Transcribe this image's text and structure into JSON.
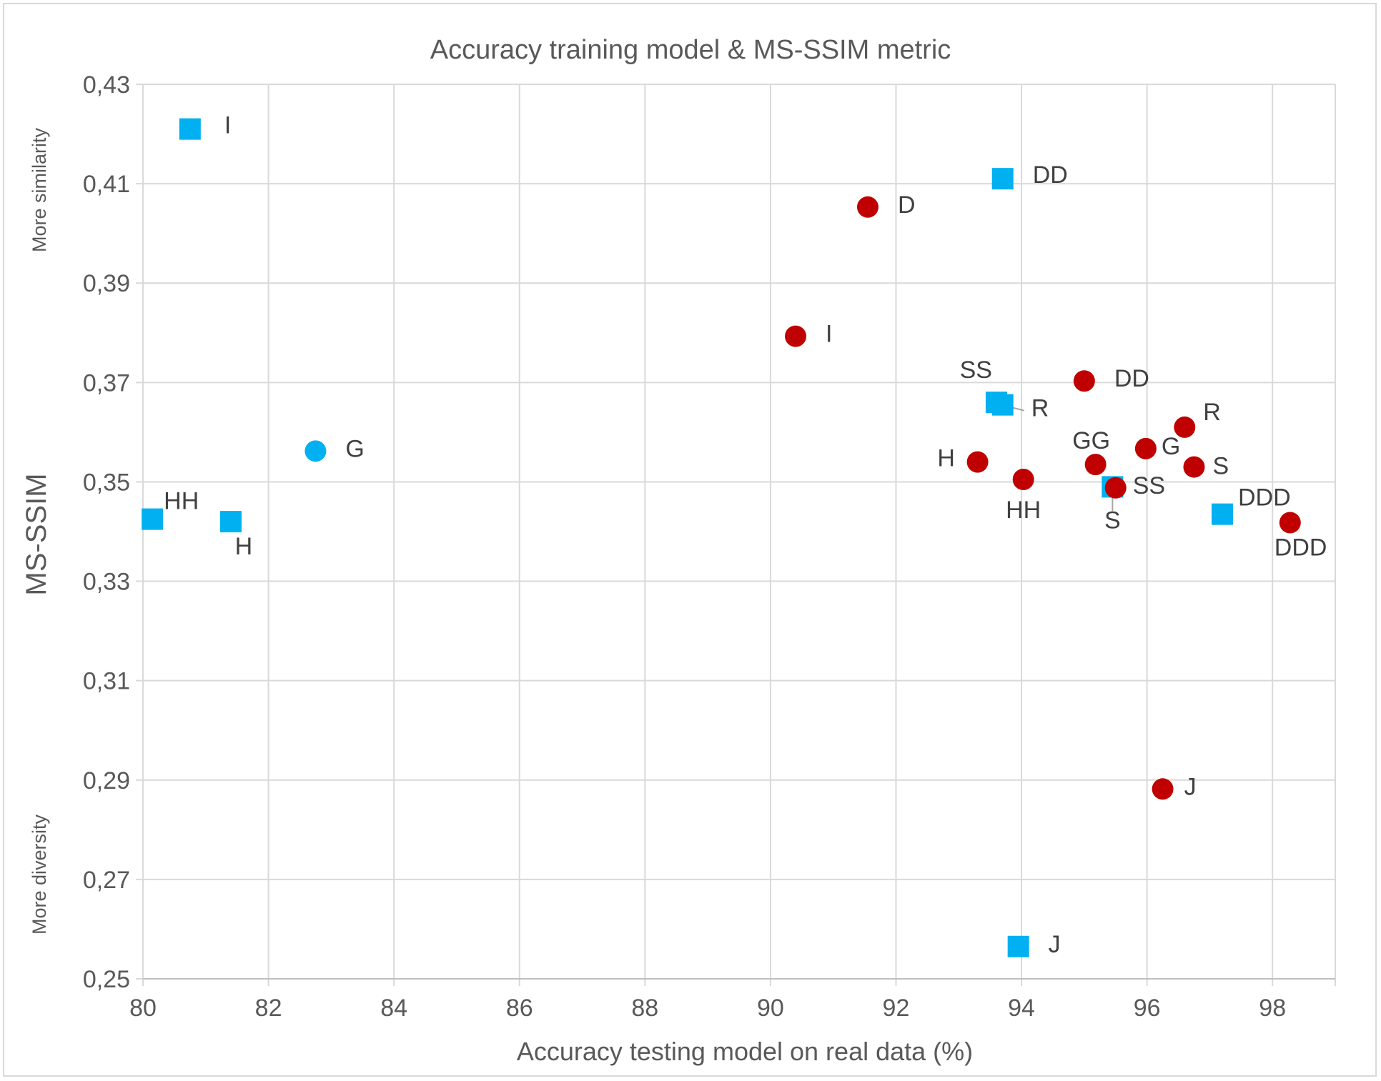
{
  "chart_data": {
    "type": "scatter",
    "title": "Accuracy training model & MS-SSIM metric",
    "xlabel": "Accuracy testing model on real data (%)",
    "ylabel": "MS-SSIM",
    "xlim": [
      80,
      99
    ],
    "ylim": [
      0.25,
      0.43
    ],
    "x_ticks": [
      80,
      82,
      84,
      86,
      88,
      90,
      92,
      94,
      96,
      98
    ],
    "x_tick_labels": [
      "80",
      "82",
      "84",
      "86",
      "88",
      "90",
      "92",
      "94",
      "96",
      "98"
    ],
    "y_ticks": [
      0.25,
      0.27,
      0.29,
      0.31,
      0.33,
      0.35,
      0.37,
      0.39,
      0.41,
      0.43
    ],
    "y_tick_labels": [
      "0,25",
      "0,27",
      "0,29",
      "0,31",
      "0,33",
      "0,35",
      "0,37",
      "0,39",
      "0,41",
      "0,43"
    ],
    "grid": true,
    "annotations": {
      "top": "More similarity",
      "bottom": "More diversity"
    },
    "series": [
      {
        "marker": "square",
        "color": "#00b0f0",
        "points": [
          {
            "x": 80.75,
            "y": 0.421,
            "label": "I"
          },
          {
            "x": 93.7,
            "y": 0.411,
            "label": "DD"
          },
          {
            "x": 93.6,
            "y": 0.366,
            "label": "SS"
          },
          {
            "x": 93.7,
            "y": 0.3655,
            "label": "R"
          },
          {
            "x": 95.45,
            "y": 0.349,
            "label": "S"
          },
          {
            "x": 97.2,
            "y": 0.3435,
            "label": "DDD"
          },
          {
            "x": 80.15,
            "y": 0.3425,
            "label": "HH"
          },
          {
            "x": 81.4,
            "y": 0.342,
            "label": "H"
          },
          {
            "x": 93.95,
            "y": 0.2565,
            "label": "J"
          }
        ]
      },
      {
        "marker": "circle",
        "color": "#00b0f0",
        "points": [
          {
            "x": 82.75,
            "y": 0.3562,
            "label": "G"
          }
        ]
      },
      {
        "marker": "circle",
        "color": "#c00000",
        "points": [
          {
            "x": 91.55,
            "y": 0.4053,
            "label": "D"
          },
          {
            "x": 90.4,
            "y": 0.3793,
            "label": "I"
          },
          {
            "x": 95.0,
            "y": 0.3703,
            "label": "DD"
          },
          {
            "x": 96.6,
            "y": 0.361,
            "label": "R"
          },
          {
            "x": 95.98,
            "y": 0.3567,
            "label": "G"
          },
          {
            "x": 95.18,
            "y": 0.3535,
            "label": "GG"
          },
          {
            "x": 96.75,
            "y": 0.353,
            "label": "S"
          },
          {
            "x": 93.3,
            "y": 0.354,
            "label": "H"
          },
          {
            "x": 94.03,
            "y": 0.3505,
            "label": "HH"
          },
          {
            "x": 95.5,
            "y": 0.3488,
            "label": "SS"
          },
          {
            "x": 98.28,
            "y": 0.3418,
            "label": "DDD"
          },
          {
            "x": 96.25,
            "y": 0.2882,
            "label": "J"
          }
        ]
      }
    ]
  }
}
